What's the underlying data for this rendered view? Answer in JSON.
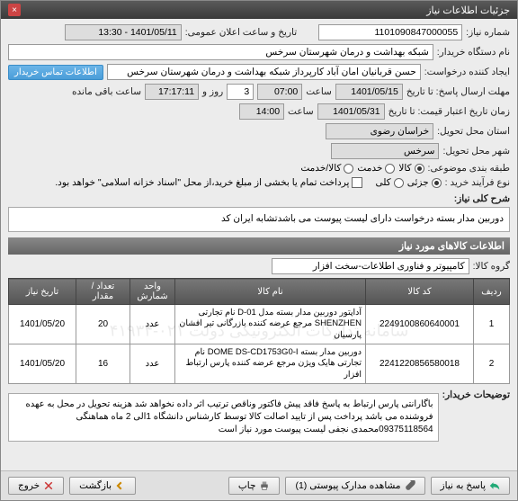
{
  "title": "جزئیات اطلاعات نیاز",
  "fields": {
    "need_no_label": "شماره نیاز:",
    "need_no": "1101090847000055",
    "buyer_label": "نام دستگاه خریدار:",
    "buyer": "شبکه بهداشت و درمان شهرستان سرخس",
    "creator_label": "ایجاد کننده درخواست:",
    "creator": "حسن قربانیان امان آباد کارپرداز شبکه بهداشت و درمان شهرستان سرخس",
    "contact_btn": "اطلاعات تماس خریدار",
    "deadline_label": "مهلت ارسال پاسخ: تا تاریخ",
    "deadline_date": "1401/05/15",
    "time_label": "ساعت",
    "deadline_time": "07:00",
    "days": "3",
    "days_label": "روز و",
    "remaining": "17:17:11",
    "remaining_label": "ساعت باقی مانده",
    "validity_label": "زمان تاریخ اعتبار قیمت: تا تاریخ",
    "validity_date": "1401/05/31",
    "validity_time": "14:00",
    "announce_label": "تاریخ و ساعت اعلان عمومی:",
    "announce_val": "1401/05/11 - 13:30",
    "province_label": "استان محل تحویل:",
    "province": "خراسان رضوی",
    "city_label": "شهر محل تحویل:",
    "city": "سرخس",
    "category_label": "طبقه بندی موضوعی:",
    "cat_goods": "کالا",
    "cat_service": "خدمت",
    "cat_both": "کالا/خدمت",
    "buy_type_label": "نوع فرآیند خرید :",
    "buy_full": "پرداخت تمام یا بخشی از مبلغ خرید،از محل \"اسناد خزانه اسلامی\" خواهد بود.",
    "buy_partial_label": "جزئی",
    "buy_all_label": "کلی"
  },
  "desc": {
    "label": "شرح کلی نیاز:",
    "text": "دوربین مدار بسته درخواست دارای لیست پیوست می باشدتشابه ایران کد"
  },
  "items_section": "اطلاعات کالاهای مورد نیاز",
  "group_label": "گروه کالا:",
  "group_val": "کامپیوتر و فناوری اطلاعات-سخت افزار",
  "table": {
    "watermark": "سامانه تدارکات الکترونیکی دولت ۰۲۱-۴۱۹۳۴",
    "headers": [
      "ردیف",
      "کد کالا",
      "نام کالا",
      "واحد شمارش",
      "تعداد / مقدار",
      "تاریخ نیاز"
    ],
    "rows": [
      {
        "idx": "1",
        "code": "2249100860640001",
        "name": "آداپتور دوربین مدار بسته مدل D-01 نام تجارتی SHENZHEN مرجع عرضه کننده بازرگانی تیر افشان پارسیان",
        "unit": "عدد",
        "qty": "20",
        "date": "1401/05/20"
      },
      {
        "idx": "2",
        "code": "2241220856580018",
        "name": "دوربین مدار بسته DOME DS-CD1753G0-I نام تجارتی هایک ویژن مرجع عرضه کننده پارس ارتباط افزار",
        "unit": "عدد",
        "qty": "16",
        "date": "1401/05/20"
      }
    ]
  },
  "notes_label": "توضیحات خریدار:",
  "notes_text": "باگارانتی پارس ارتباط به پاسخ فاقد پیش فاکتور وناقص ترتیب اثر داده نخواهد شد هزینه تحویل در محل به عهده فروشنده می باشد پرداخت پس از تایید اصالت کالا توسط کارشناس دانشگاه 1الی 2 ماه هماهنگی 09375118564محمدی نجفی لیست پیوست مورد نیاز است",
  "footer": {
    "respond": "پاسخ به نیاز",
    "attachments": "مشاهده مدارک پیوستی (1)",
    "print": "چاپ",
    "back": "بازگشت",
    "exit": "خروج"
  }
}
